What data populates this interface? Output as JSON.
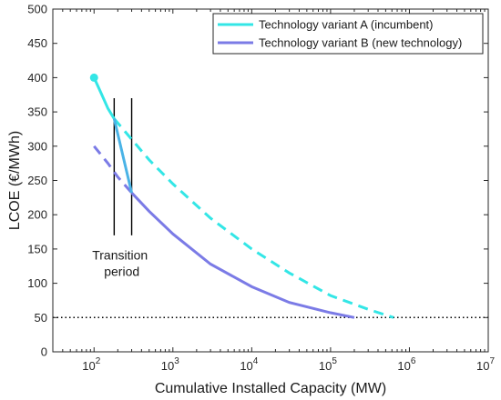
{
  "chart_data": {
    "type": "line",
    "xscale": "log",
    "xlim": [
      30,
      10000000
    ],
    "ylim": [
      0,
      500
    ],
    "xlabel": "Cumulative Installed Capacity (MW)",
    "ylabel": "LCOE (€/MWh)",
    "x_ticks": [
      {
        "base": "10",
        "exp": "2",
        "value": 100
      },
      {
        "base": "10",
        "exp": "3",
        "value": 1000
      },
      {
        "base": "10",
        "exp": "4",
        "value": 10000
      },
      {
        "base": "10",
        "exp": "5",
        "value": 100000
      },
      {
        "base": "10",
        "exp": "6",
        "value": 1000000
      },
      {
        "base": "10",
        "exp": "7",
        "value": 10000000
      }
    ],
    "y_ticks": [
      "0",
      "50",
      "100",
      "150",
      "200",
      "250",
      "300",
      "350",
      "400",
      "450",
      "500"
    ],
    "grid": false,
    "legend_position": "top-right",
    "series": [
      {
        "name": "Technology variant A (incumbent)",
        "color": "#33e6e6",
        "solid": {
          "x": [
            100,
            120,
            150,
            180
          ],
          "y": [
            400,
            380,
            355,
            340
          ]
        },
        "dashed": {
          "x": [
            180,
            300,
            500,
            1000,
            3000,
            10000,
            30000,
            100000,
            300000,
            630000
          ],
          "y": [
            340,
            310,
            280,
            245,
            195,
            150,
            115,
            82,
            62,
            50
          ]
        },
        "start_marker": {
          "x": 100,
          "y": 400
        }
      },
      {
        "name": "Technology variant B (new technology)",
        "color": "#7b7be6",
        "dashed": {
          "x": [
            100,
            150,
            200,
            300
          ],
          "y": [
            300,
            275,
            255,
            232
          ]
        },
        "solid": {
          "x": [
            300,
            500,
            1000,
            3000,
            10000,
            30000,
            100000,
            200000
          ],
          "y": [
            232,
            205,
            172,
            128,
            95,
            72,
            57,
            50
          ]
        }
      }
    ],
    "transition_segment": {
      "color": "#4ab3e6",
      "x": [
        180,
        300
      ],
      "y": [
        340,
        232
      ]
    },
    "transition_lines": {
      "x": [
        180,
        300
      ],
      "y_range": [
        170,
        370
      ]
    },
    "reference_line": {
      "y": 50,
      "style": "dotted"
    },
    "annotation": {
      "line1": "Transition",
      "line2": "period",
      "x": 250,
      "y": 140
    }
  }
}
